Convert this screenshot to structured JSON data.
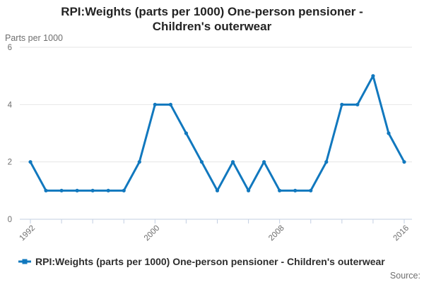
{
  "title": "RPI:Weights (parts per 1000) One-person pensioner - Children's outerwear",
  "legend": {
    "series_label": "RPI:Weights (parts per 1000) One-person pensioner - Children's outerwear"
  },
  "source_label": "Source:",
  "colors": {
    "line": "#1178be",
    "grid": "#e6e6e6",
    "axis": "#c3cfe2",
    "text_gray": "#6e6e6e",
    "title_text": "#232323"
  },
  "chart_data": {
    "type": "line",
    "title": "RPI:Weights (parts per 1000) One-person pensioner - Children's outerwear",
    "ylabel": "Parts per 1000",
    "xlabel": "",
    "x": [
      1992,
      1993,
      1994,
      1995,
      1996,
      1997,
      1998,
      1999,
      2000,
      2001,
      2002,
      2003,
      2004,
      2005,
      2006,
      2007,
      2008,
      2009,
      2010,
      2011,
      2012,
      2013,
      2014,
      2015,
      2016
    ],
    "values": [
      2,
      1,
      1,
      1,
      1,
      1,
      1,
      2,
      4,
      4,
      3,
      2,
      1,
      2,
      1,
      2,
      1,
      1,
      1,
      2,
      4,
      4,
      5,
      3,
      2
    ],
    "ylim": [
      0,
      6
    ],
    "y_ticks": [
      0,
      2,
      4,
      6
    ],
    "x_tick_years": [
      1992,
      1994,
      1996,
      1998,
      2000,
      2002,
      2004,
      2006,
      2008,
      2010,
      2012,
      2014,
      2016
    ],
    "x_label_years": [
      1992,
      2000,
      2008,
      2016
    ],
    "grid": "horizontal-only",
    "legend_position": "bottom-left",
    "marker": "circle"
  }
}
